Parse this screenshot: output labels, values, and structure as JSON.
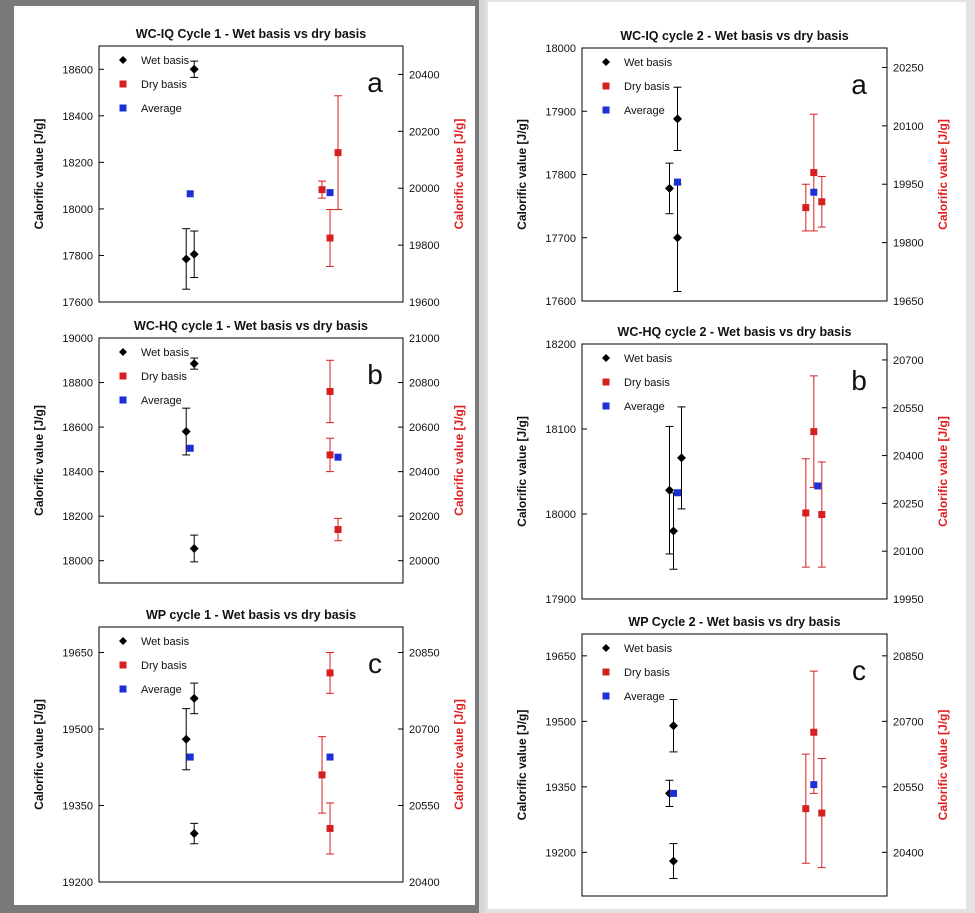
{
  "chart_data": [
    {
      "type": "scatter",
      "title": "WC-IQ Cycle 1 - Wet basis vs dry basis",
      "ylabel_left": "Calorific value [J/g]",
      "ylabel_right": "Calorific value [J/g]",
      "panel_letter": "a",
      "ylim_left": [
        17600,
        18700
      ],
      "ylim_right": [
        19600,
        20500
      ],
      "yticks_left": [
        17600,
        17800,
        18000,
        18200,
        18400,
        18600
      ],
      "yticks_right": [
        19600,
        19800,
        20000,
        20200,
        20400
      ],
      "legend": [
        "Wet basis",
        "Dry basis",
        "Average"
      ],
      "series": [
        {
          "name": "Wet basis",
          "color": "#000000",
          "marker": "diamond",
          "axis": "left",
          "points": [
            {
              "x": 0.99,
              "y": 17785,
              "err": 130
            },
            {
              "x": 1.01,
              "y": 17805,
              "err": 100
            },
            {
              "x": 1.01,
              "y": 18600,
              "err": 35
            }
          ]
        },
        {
          "name": "Dry basis",
          "color": "#d62020",
          "marker": "square",
          "axis": "right",
          "points": [
            {
              "x": 2.98,
              "y": 19995,
              "err": 30
            },
            {
              "x": 3.0,
              "y": 19825,
              "err": 100
            },
            {
              "x": 3.02,
              "y": 20125,
              "err": 200
            }
          ]
        },
        {
          "name": "Average",
          "color": "#1a2fd6",
          "marker": "square",
          "axis": "left",
          "points": [
            {
              "x": 1.0,
              "y": 18065
            },
            {
              "x": 3.0,
              "y": 18070
            }
          ]
        }
      ]
    },
    {
      "type": "scatter",
      "title": "WC-HQ cycle 1 - Wet basis vs dry basis",
      "ylabel_left": "Calorific value [J/g]",
      "ylabel_right": "Calorific value [J/g]",
      "panel_letter": "b",
      "ylim_left": [
        17900,
        19000
      ],
      "ylim_right": [
        19900,
        21000
      ],
      "yticks_left": [
        18000,
        18200,
        18400,
        18600,
        18800,
        19000
      ],
      "yticks_right": [
        20000,
        20200,
        20400,
        20600,
        20800,
        21000
      ],
      "legend": [
        "Wet basis",
        "Dry basis",
        "Average"
      ],
      "series": [
        {
          "name": "Wet basis",
          "color": "#000000",
          "marker": "diamond",
          "axis": "left",
          "points": [
            {
              "x": 0.99,
              "y": 18580,
              "err": 105
            },
            {
              "x": 1.01,
              "y": 18885,
              "err": 25
            },
            {
              "x": 1.01,
              "y": 18055,
              "err": 60
            }
          ]
        },
        {
          "name": "Dry basis",
          "color": "#d62020",
          "marker": "square",
          "axis": "right",
          "points": [
            {
              "x": 3.0,
              "y": 20760,
              "err": 140
            },
            {
              "x": 3.0,
              "y": 20475,
              "err": 75
            },
            {
              "x": 3.02,
              "y": 20140,
              "err": 50
            }
          ]
        },
        {
          "name": "Average",
          "color": "#1a2fd6",
          "marker": "square",
          "axis": "left",
          "points": [
            {
              "x": 1.0,
              "y": 18505
            },
            {
              "x": 3.02,
              "y": 18465
            }
          ]
        }
      ]
    },
    {
      "type": "scatter",
      "title": "WP cycle 1 - Wet basis vs dry basis",
      "ylabel_left": "Calorific value [J/g]",
      "ylabel_right": "Calorific value [J/g]",
      "panel_letter": "c",
      "ylim_left": [
        19200,
        19700
      ],
      "ylim_right": [
        20400,
        20900
      ],
      "yticks_left": [
        19200,
        19350,
        19500,
        19650
      ],
      "yticks_right": [
        20400,
        20550,
        20700,
        20850
      ],
      "legend": [
        "Wet basis",
        "Dry basis",
        "Average"
      ],
      "series": [
        {
          "name": "Wet basis",
          "color": "#000000",
          "marker": "diamond",
          "axis": "left",
          "points": [
            {
              "x": 0.99,
              "y": 19480,
              "err": 60
            },
            {
              "x": 1.01,
              "y": 19560,
              "err": 30
            },
            {
              "x": 1.01,
              "y": 19295,
              "err": 20
            }
          ]
        },
        {
          "name": "Dry basis",
          "color": "#d62020",
          "marker": "square",
          "axis": "right",
          "points": [
            {
              "x": 2.98,
              "y": 20610,
              "err": 75
            },
            {
              "x": 3.0,
              "y": 20810,
              "err": 40
            },
            {
              "x": 3.0,
              "y": 20505,
              "err": 50
            }
          ]
        },
        {
          "name": "Average",
          "color": "#1a2fd6",
          "marker": "square",
          "axis": "left",
          "points": [
            {
              "x": 1.0,
              "y": 19445
            },
            {
              "x": 3.0,
              "y": 19445
            }
          ]
        }
      ]
    },
    {
      "type": "scatter",
      "title": "WC-IQ cycle 2 - Wet basis vs dry basis",
      "ylabel_left": "Calorific value [J/g]",
      "ylabel_right": "Calorific value [J/g]",
      "panel_letter": "a",
      "ylim_left": [
        17600,
        18000
      ],
      "ylim_right": [
        19650,
        20300
      ],
      "yticks_left": [
        17600,
        17700,
        17800,
        17900,
        18000
      ],
      "yticks_right": [
        19650,
        19800,
        19950,
        20100,
        20250
      ],
      "legend": [
        "Wet basis",
        "Dry basis",
        "Average"
      ],
      "series": [
        {
          "name": "Wet basis",
          "color": "#000000",
          "marker": "diamond",
          "axis": "left",
          "points": [
            {
              "x": 0.99,
              "y": 17778,
              "err": 40
            },
            {
              "x": 1.01,
              "y": 17888,
              "err": 50
            },
            {
              "x": 1.01,
              "y": 17700,
              "err": 85
            }
          ]
        },
        {
          "name": "Dry basis",
          "color": "#d62020",
          "marker": "square",
          "axis": "right",
          "points": [
            {
              "x": 2.98,
              "y": 19890,
              "err": 60
            },
            {
              "x": 3.0,
              "y": 19980,
              "err": 150
            },
            {
              "x": 3.02,
              "y": 19905,
              "err": 65
            }
          ]
        },
        {
          "name": "Average",
          "color": "#1a2fd6",
          "marker": "square",
          "axis": "left",
          "points": [
            {
              "x": 1.01,
              "y": 17788
            },
            {
              "x": 3.0,
              "y": 17772
            }
          ]
        }
      ]
    },
    {
      "type": "scatter",
      "title": "WC-HQ cycle 2 - Wet basis vs dry basis",
      "ylabel_left": "Calorific value [J/g]",
      "ylabel_right": "Calorific value [J/g]",
      "panel_letter": "b",
      "ylim_left": [
        17900,
        18200
      ],
      "ylim_right": [
        19950,
        20750
      ],
      "yticks_left": [
        17900,
        18000,
        18100,
        18200
      ],
      "yticks_right": [
        19950,
        20100,
        20250,
        20400,
        20550,
        20700
      ],
      "legend": [
        "Wet basis",
        "Dry basis",
        "Average"
      ],
      "series": [
        {
          "name": "Wet basis",
          "color": "#000000",
          "marker": "diamond",
          "axis": "left",
          "points": [
            {
              "x": 0.99,
              "y": 18028,
              "err": 75
            },
            {
              "x": 1.0,
              "y": 17980,
              "err": 45
            },
            {
              "x": 1.02,
              "y": 18066,
              "err": 60
            }
          ]
        },
        {
          "name": "Dry basis",
          "color": "#d62020",
          "marker": "square",
          "axis": "right",
          "points": [
            {
              "x": 2.98,
              "y": 20220,
              "err": 170
            },
            {
              "x": 3.0,
              "y": 20475,
              "err": 175
            },
            {
              "x": 3.02,
              "y": 20215,
              "err": 165
            }
          ]
        },
        {
          "name": "Average",
          "color": "#1a2fd6",
          "marker": "square",
          "axis": "left",
          "points": [
            {
              "x": 1.01,
              "y": 18025
            },
            {
              "x": 3.01,
              "y": 18033
            }
          ]
        }
      ]
    },
    {
      "type": "scatter",
      "title": "WP Cycle 2 - Wet basis vs dry basis",
      "ylabel_left": "Calorific value [J/g]",
      "ylabel_right": "Calorific value [J/g]",
      "panel_letter": "c",
      "ylim_left": [
        19100,
        19700
      ],
      "ylim_right": [
        20300,
        20900
      ],
      "yticks_left": [
        19200,
        19350,
        19500,
        19650
      ],
      "yticks_right": [
        20400,
        20550,
        20700,
        20850
      ],
      "legend": [
        "Wet basis",
        "Dry basis",
        "Average"
      ],
      "series": [
        {
          "name": "Wet basis",
          "color": "#000000",
          "marker": "diamond",
          "axis": "left",
          "points": [
            {
              "x": 0.99,
              "y": 19335,
              "err": 30
            },
            {
              "x": 1.0,
              "y": 19490,
              "err": 60
            },
            {
              "x": 1.0,
              "y": 19180,
              "err": 40
            }
          ]
        },
        {
          "name": "Dry basis",
          "color": "#d62020",
          "marker": "square",
          "axis": "right",
          "points": [
            {
              "x": 2.98,
              "y": 20500,
              "err": 125
            },
            {
              "x": 3.0,
              "y": 20675,
              "err": 140
            },
            {
              "x": 3.02,
              "y": 20490,
              "err": 125
            }
          ]
        },
        {
          "name": "Average",
          "color": "#1a2fd6",
          "marker": "square",
          "axis": "left",
          "points": [
            {
              "x": 1.0,
              "y": 19335
            },
            {
              "x": 3.0,
              "y": 19355
            }
          ]
        }
      ]
    }
  ]
}
